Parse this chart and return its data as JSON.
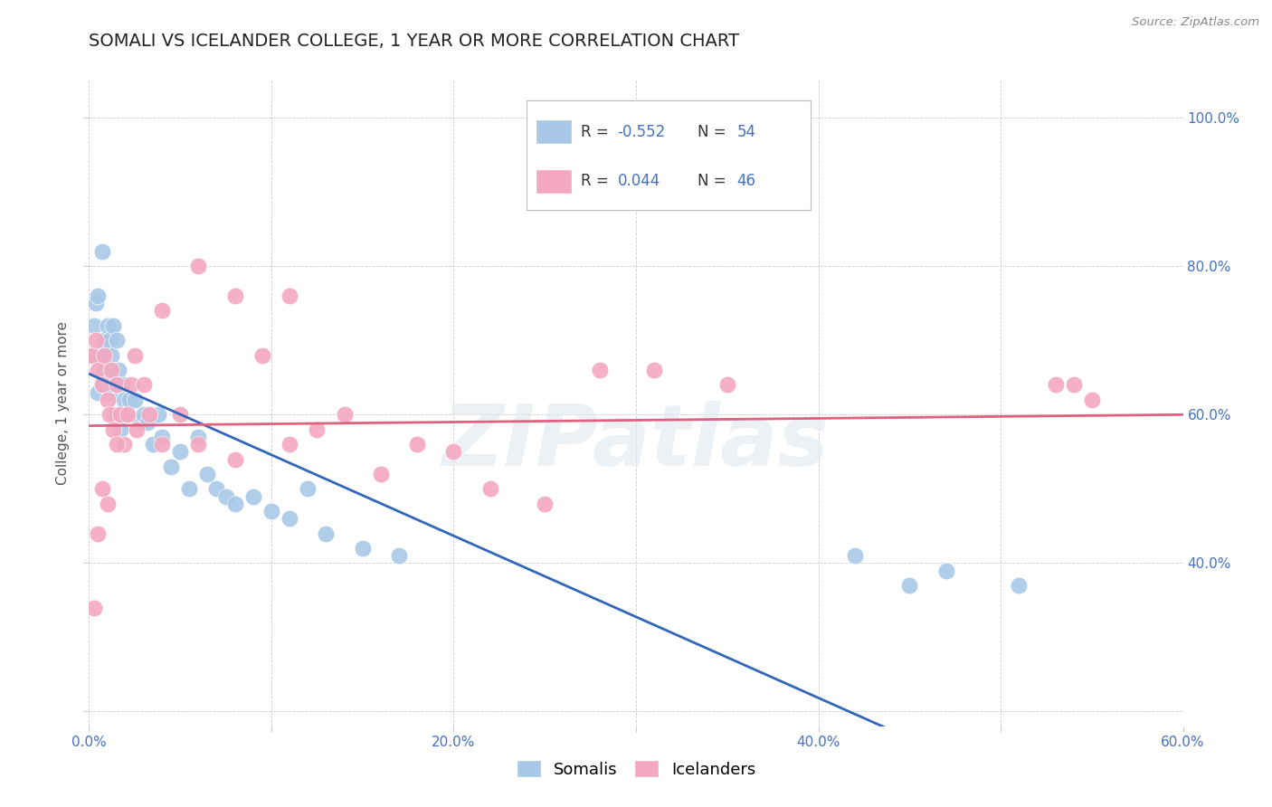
{
  "title": "SOMALI VS ICELANDER COLLEGE, 1 YEAR OR MORE CORRELATION CHART",
  "source": "Source: ZipAtlas.com",
  "ylabel": "College, 1 year or more",
  "xlim": [
    0.0,
    0.6
  ],
  "ylim": [
    0.18,
    1.05
  ],
  "right_ytick_color": "#4472c4",
  "somali_R": "-0.552",
  "somali_N": "54",
  "icelander_R": "0.044",
  "icelander_N": "46",
  "somali_color": "#a8c8e8",
  "icelander_color": "#f4a8c0",
  "somali_line_color": "#3366bb",
  "icelander_line_color": "#e06080",
  "watermark": "ZIPatlas",
  "somali_x": [
    0.002,
    0.003,
    0.004,
    0.005,
    0.005,
    0.006,
    0.007,
    0.007,
    0.008,
    0.008,
    0.009,
    0.01,
    0.01,
    0.011,
    0.011,
    0.012,
    0.012,
    0.013,
    0.013,
    0.014,
    0.015,
    0.015,
    0.016,
    0.017,
    0.018,
    0.019,
    0.02,
    0.022,
    0.025,
    0.028,
    0.03,
    0.032,
    0.035,
    0.038,
    0.04,
    0.045,
    0.05,
    0.055,
    0.06,
    0.065,
    0.07,
    0.075,
    0.08,
    0.09,
    0.1,
    0.11,
    0.12,
    0.13,
    0.15,
    0.17,
    0.42,
    0.45,
    0.47,
    0.51
  ],
  "somali_y": [
    0.68,
    0.72,
    0.75,
    0.76,
    0.63,
    0.68,
    0.82,
    0.64,
    0.7,
    0.66,
    0.69,
    0.65,
    0.72,
    0.63,
    0.7,
    0.68,
    0.64,
    0.66,
    0.72,
    0.6,
    0.64,
    0.7,
    0.66,
    0.58,
    0.64,
    0.62,
    0.6,
    0.62,
    0.62,
    0.59,
    0.6,
    0.59,
    0.56,
    0.6,
    0.57,
    0.53,
    0.55,
    0.5,
    0.57,
    0.52,
    0.5,
    0.49,
    0.48,
    0.49,
    0.47,
    0.46,
    0.5,
    0.44,
    0.42,
    0.41,
    0.41,
    0.37,
    0.39,
    0.37
  ],
  "icelander_x": [
    0.002,
    0.004,
    0.005,
    0.007,
    0.008,
    0.01,
    0.011,
    0.012,
    0.013,
    0.015,
    0.017,
    0.019,
    0.021,
    0.023,
    0.026,
    0.03,
    0.033,
    0.04,
    0.05,
    0.06,
    0.08,
    0.095,
    0.11,
    0.125,
    0.14,
    0.16,
    0.18,
    0.2,
    0.22,
    0.25,
    0.11,
    0.08,
    0.06,
    0.04,
    0.025,
    0.015,
    0.01,
    0.007,
    0.005,
    0.003,
    0.28,
    0.31,
    0.35,
    0.53,
    0.54,
    0.55
  ],
  "icelander_y": [
    0.68,
    0.7,
    0.66,
    0.64,
    0.68,
    0.62,
    0.6,
    0.66,
    0.58,
    0.64,
    0.6,
    0.56,
    0.6,
    0.64,
    0.58,
    0.64,
    0.6,
    0.56,
    0.6,
    0.56,
    0.54,
    0.68,
    0.56,
    0.58,
    0.6,
    0.52,
    0.56,
    0.55,
    0.5,
    0.48,
    0.76,
    0.76,
    0.8,
    0.74,
    0.68,
    0.56,
    0.48,
    0.5,
    0.44,
    0.34,
    0.66,
    0.66,
    0.64,
    0.64,
    0.64,
    0.62
  ],
  "grid_color": "#cccccc",
  "background_color": "#ffffff",
  "title_fontsize": 14,
  "axis_label_fontsize": 11,
  "tick_fontsize": 11,
  "legend_fontsize": 13
}
